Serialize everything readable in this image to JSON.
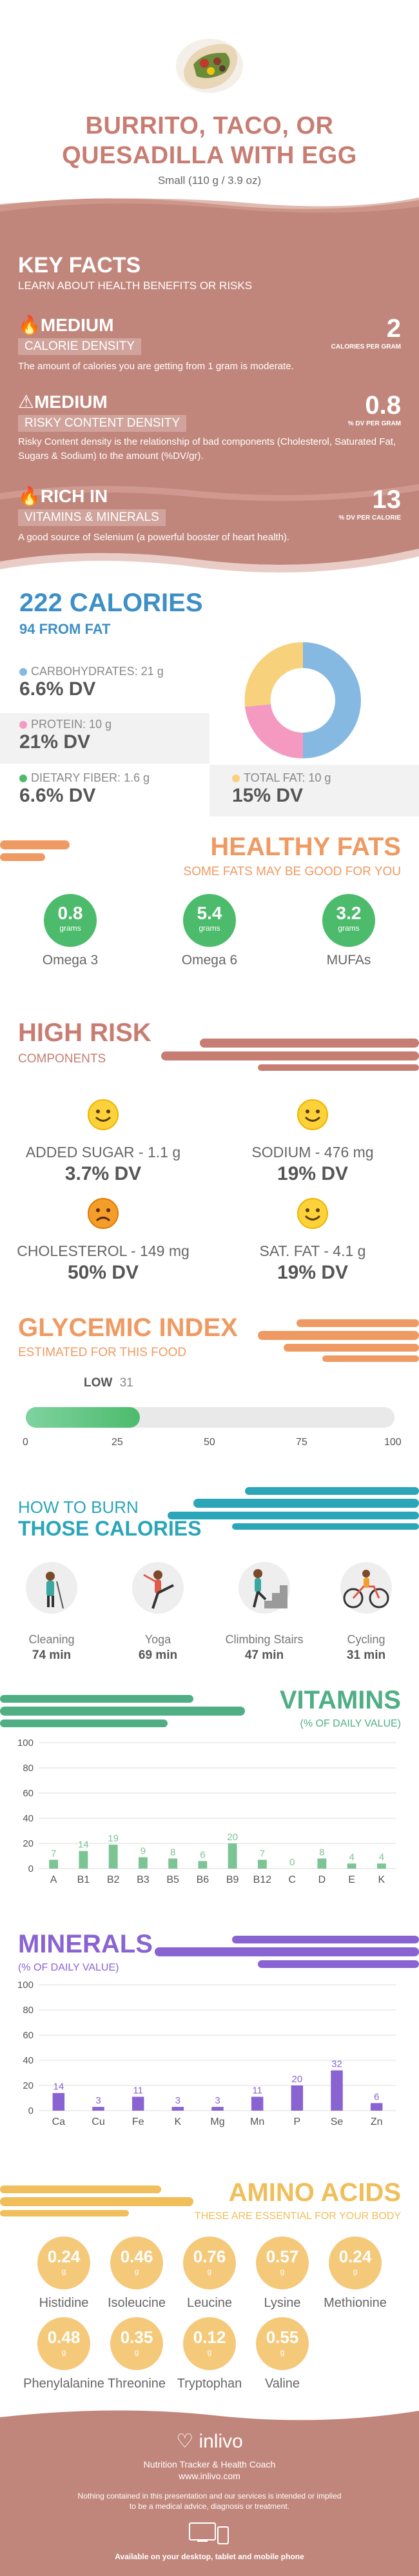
{
  "header": {
    "title_line1": "BURRITO, TACO, OR",
    "title_line2": "QUESADILLA WITH EGG",
    "serving": "Small (110 g / 3.9 oz)"
  },
  "key_facts": {
    "title": "KEY FACTS",
    "subtitle": "LEARN ABOUT HEALTH BENEFITS OR RISKS",
    "items": [
      {
        "level": "MEDIUM",
        "label": "CALORIE DENSITY",
        "value": "2",
        "unit": "CALORIES PER GRAM",
        "text": "The amount of calories you are getting from 1 gram is moderate.",
        "icon": "flame-icon"
      },
      {
        "level": "MEDIUM",
        "label": "RISKY CONTENT DENSITY",
        "value": "0.8",
        "unit": "% DV PER GRAM",
        "text": "Risky Content density is the relationship of bad components (Cholesterol, Saturated Fat, Sugars & Sodium) to the amount (%DV/gr).",
        "icon": "warning-icon"
      },
      {
        "level": "RICH IN",
        "label": "VITAMINS & MINERALS",
        "value": "13",
        "unit": "% DV PER CALORIE",
        "text": "A good source of Selenium (a powerful booster of heart health).",
        "icon": "flame-icon"
      }
    ]
  },
  "calories": {
    "title": "222 CALORIES",
    "from_fat": "94 FROM FAT",
    "macros": [
      {
        "label": "CARBOHYDRATES: 21 g",
        "dv": "6.6% DV",
        "color": "#85b9e2"
      },
      {
        "label": "PROTEIN: 10 g",
        "dv": "21% DV",
        "color": "#f49ac1"
      },
      {
        "label": "DIETARY FIBER: 1.6 g",
        "dv": "6.6% DV",
        "color": "#4cbb6c"
      },
      {
        "label": "TOTAL FAT: 10 g",
        "dv": "15% DV",
        "color": "#f8d17c"
      }
    ]
  },
  "healthy_fats": {
    "title": "HEALTHY FATS",
    "subtitle": "SOME FATS MAY BE GOOD FOR YOU",
    "items": [
      {
        "value": "0.8",
        "unit": "grams",
        "name": "Omega 3"
      },
      {
        "value": "5.4",
        "unit": "grams",
        "name": "Omega 6"
      },
      {
        "value": "3.2",
        "unit": "grams",
        "name": "MUFAs"
      }
    ]
  },
  "high_risk": {
    "title": "HIGH RISK",
    "subtitle": "COMPONENTS",
    "items": [
      {
        "name": "ADDED SUGAR - 1.1 g",
        "dv": "3.7% DV",
        "mood": "happy"
      },
      {
        "name": "SODIUM - 476 mg",
        "dv": "19% DV",
        "mood": "happy"
      },
      {
        "name": "CHOLESTEROL - 149 mg",
        "dv": "50% DV",
        "mood": "sad"
      },
      {
        "name": "SAT. FAT - 4.1 g",
        "dv": "19% DV",
        "mood": "happy"
      }
    ]
  },
  "glycemic": {
    "title": "GLYCEMIC INDEX",
    "subtitle": "ESTIMATED FOR THIS FOOD",
    "level": "LOW",
    "value": 31,
    "value_text": "31",
    "ticks": [
      "0",
      "25",
      "50",
      "75",
      "100"
    ]
  },
  "burn": {
    "title_line1": "HOW TO BURN",
    "title_line2": "THOSE CALORIES",
    "items": [
      {
        "name": "Cleaning",
        "min": "74 min"
      },
      {
        "name": "Yoga",
        "min": "69 min"
      },
      {
        "name": "Climbing Stairs",
        "min": "47 min"
      },
      {
        "name": "Cycling",
        "min": "31 min"
      }
    ]
  },
  "vitamins": {
    "title": "VITAMINS",
    "subtitle": "(% OF DAILY VALUE)"
  },
  "minerals": {
    "title": "MINERALS",
    "subtitle": "(% OF DAILY VALUE)"
  },
  "chart_data": [
    {
      "type": "bar",
      "title": "VITAMINS",
      "subtitle": "(% OF DAILY VALUE)",
      "categories": [
        "A",
        "B1",
        "B2",
        "B3",
        "B5",
        "B6",
        "B9",
        "B12",
        "C",
        "D",
        "E",
        "K"
      ],
      "values": [
        7,
        14,
        19,
        9,
        8,
        6,
        20,
        7,
        0,
        8,
        4,
        4
      ],
      "ylim": [
        0,
        100
      ],
      "yticks": [
        0,
        20,
        40,
        60,
        80,
        100
      ],
      "color": "#7cc494"
    },
    {
      "type": "bar",
      "title": "MINERALS",
      "subtitle": "(% OF DAILY VALUE)",
      "categories": [
        "Ca",
        "Cu",
        "Fe",
        "K",
        "Mg",
        "Mn",
        "P",
        "Se",
        "Zn"
      ],
      "values": [
        14,
        3,
        11,
        3,
        3,
        11,
        20,
        32,
        6
      ],
      "ylim": [
        0,
        100
      ],
      "yticks": [
        0,
        20,
        40,
        60,
        80,
        100
      ],
      "color": "#8a63d2"
    }
  ],
  "amino": {
    "title": "AMINO ACIDS",
    "subtitle": "THESE ARE ESSENTIAL FOR YOUR BODY",
    "items": [
      {
        "value": "0.24",
        "unit": "g",
        "name": "Histidine"
      },
      {
        "value": "0.46",
        "unit": "g",
        "name": "Isoleucine"
      },
      {
        "value": "0.76",
        "unit": "g",
        "name": "Leucine"
      },
      {
        "value": "0.57",
        "unit": "g",
        "name": "Lysine"
      },
      {
        "value": "0.24",
        "unit": "g",
        "name": "Methionine"
      },
      {
        "value": "0.48",
        "unit": "g",
        "name": "Phenylalanine"
      },
      {
        "value": "0.35",
        "unit": "g",
        "name": "Threonine"
      },
      {
        "value": "0.12",
        "unit": "g",
        "name": "Tryptophan"
      },
      {
        "value": "0.55",
        "unit": "g",
        "name": "Valine"
      }
    ]
  },
  "footer": {
    "brand": "inlivo",
    "tagline": "Nutrition Tracker & Health Coach",
    "url": "www.inlivo.com",
    "disclaimer_1": "Nothing contained in this presentation and our services is intended or implied",
    "disclaimer_2": "to be a medical advice, diagnosis or treatment.",
    "available": "Available on your desktop, tablet and mobile phone"
  },
  "colors": {
    "rose": "#c77d72",
    "blue": "#3d8fc6",
    "orange": "#ef9a62",
    "green": "#4cbb6c",
    "purple": "#8a63d2",
    "gold": "#f0be5a"
  }
}
